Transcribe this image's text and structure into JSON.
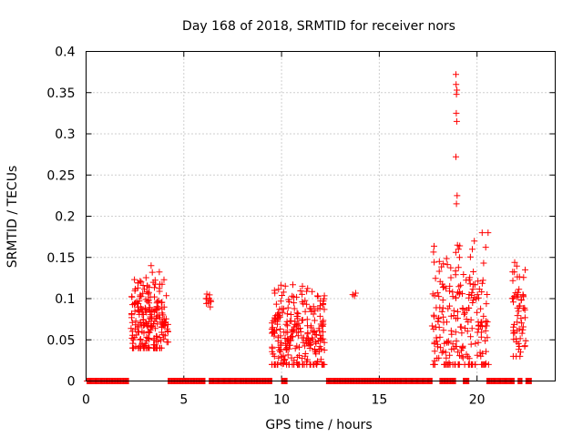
{
  "chart_data": {
    "type": "scatter",
    "title": "Day 168 of 2018, SRMTID for receiver nors",
    "xlabel": "GPS time / hours",
    "ylabel": "SRMTID / TECUs",
    "xlim": [
      0,
      24
    ],
    "ylim": [
      0,
      0.4
    ],
    "grid": true,
    "marker": "+",
    "color": "#ff0000",
    "x_ticks": [
      0,
      5,
      10,
      15,
      20
    ],
    "x_tick_labels": [
      "0",
      "5",
      "10",
      "15",
      "20"
    ],
    "y_ticks": [
      0,
      0.05,
      0.1,
      0.15,
      0.2,
      0.25,
      0.3,
      0.35,
      0.4
    ],
    "y_tick_labels": [
      "0",
      "0.05",
      "0.1",
      "0.15",
      "0.2",
      "0.25",
      "0.3",
      "0.35",
      "0.4"
    ],
    "zero_segments": [
      [
        0.05,
        2.2
      ],
      [
        4.2,
        6.1
      ],
      [
        6.3,
        9.5
      ],
      [
        10.0,
        10.3
      ],
      [
        12.3,
        17.7
      ],
      [
        18.1,
        18.9
      ],
      [
        19.3,
        19.6
      ],
      [
        20.5,
        21.9
      ],
      [
        22.1,
        22.3
      ],
      [
        22.5,
        22.8
      ]
    ],
    "clusters": [
      {
        "x_range": [
          2.3,
          4.0
        ],
        "y_min": 0.04,
        "y_max": 0.14,
        "count": 200
      },
      {
        "x_range": [
          4.0,
          4.2
        ],
        "y_min": 0.04,
        "y_max": 0.11,
        "count": 12
      },
      {
        "x_range": [
          6.1,
          6.4
        ],
        "y_min": 0.09,
        "y_max": 0.11,
        "count": 10
      },
      {
        "x_range": [
          9.5,
          12.2
        ],
        "y_min": 0.02,
        "y_max": 0.125,
        "count": 260
      },
      {
        "x_range": [
          13.6,
          13.8
        ],
        "y_min": 0.1,
        "y_max": 0.115,
        "count": 3
      },
      {
        "x_range": [
          17.7,
          20.6
        ],
        "y_min": 0.02,
        "y_max": 0.18,
        "count": 220
      },
      {
        "x_range": [
          21.8,
          22.5
        ],
        "y_min": 0.03,
        "y_max": 0.165,
        "count": 60
      }
    ],
    "spike_points": [
      {
        "x": 18.92,
        "y": 0.372
      },
      {
        "x": 18.93,
        "y": 0.36
      },
      {
        "x": 18.95,
        "y": 0.348
      },
      {
        "x": 18.97,
        "y": 0.353
      },
      {
        "x": 18.94,
        "y": 0.325
      },
      {
        "x": 18.96,
        "y": 0.315
      },
      {
        "x": 18.92,
        "y": 0.272
      },
      {
        "x": 18.98,
        "y": 0.225
      },
      {
        "x": 18.95,
        "y": 0.215
      },
      {
        "x": 19.0,
        "y": 0.165
      },
      {
        "x": 19.05,
        "y": 0.16
      },
      {
        "x": 19.1,
        "y": 0.15
      },
      {
        "x": 19.02,
        "y": 0.035
      }
    ]
  }
}
